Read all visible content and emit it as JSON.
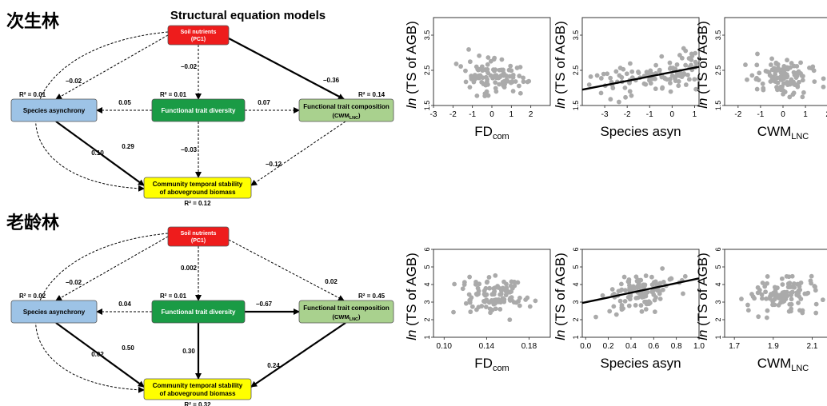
{
  "sem_title": "Structural equation models",
  "panels": [
    {
      "section_label": "次生林",
      "nodes": {
        "soil": {
          "line1": "Soil nutrients",
          "line2": "(PC1)",
          "fill": "#ee1c1c"
        },
        "asyn": {
          "line1": "Species asynchrony",
          "fill": "#9dc3e6"
        },
        "fd": {
          "line1": "Functional trait diversity",
          "fill": "#1a9b45"
        },
        "cwm": {
          "line1": "Functional trait composition",
          "line2_main": "(CWM",
          "line2_sub": "LNC",
          "line2_end": ")",
          "fill": "#a9d18e"
        },
        "stab": {
          "line1": "Community temporal stability",
          "line2": "of aboveground biomass",
          "fill": "#ffff00"
        }
      },
      "r2": {
        "asyn": "R² = 0.01",
        "fd": "R² = 0.01",
        "cwm": "R² = 0.14",
        "stab": "R² = 0.12"
      },
      "paths": {
        "soil_asyn": "−0.02",
        "soil_fd": "−0.02",
        "soil_cwm": "−0.36",
        "soil_stab": "0.10",
        "fd_asyn": "0.05",
        "fd_cwm": "0.07",
        "asyn_stab": "0.29",
        "fd_stab": "−0.03",
        "cwm_stab": "−0.12"
      },
      "plots": [
        {
          "xlabel_main": "FD",
          "xlabel_sub": "com",
          "yticks": [
            "1.5",
            "2.5",
            "3.5"
          ],
          "ylim": [
            1.5,
            4.0
          ],
          "xticks": [
            "-3",
            "-2",
            "-1",
            "0",
            "1",
            "2"
          ],
          "xlim": [
            -3,
            3
          ],
          "trend": null,
          "seed": 11
        },
        {
          "xlabel_main": "Species asyn",
          "xlabel_sub": "",
          "yticks": [
            "1.5",
            "2.5",
            "3.5"
          ],
          "ylim": [
            1.5,
            4.0
          ],
          "xticks": [
            "-3",
            "-2",
            "-1",
            "0",
            "1"
          ],
          "xlim": [
            -4,
            1.2
          ],
          "trend": [
            1.95,
            2.6
          ],
          "seed": 23
        },
        {
          "xlabel_main": "CWM",
          "xlabel_sub": "LNC",
          "yticks": [
            "1.5",
            "2.5",
            "3.5"
          ],
          "ylim": [
            1.5,
            4.0
          ],
          "xticks": [
            "-2",
            "-1",
            "0",
            "1",
            "2"
          ],
          "xlim": [
            -2.6,
            2.6
          ],
          "trend": null,
          "seed": 37
        }
      ]
    },
    {
      "section_label": "老龄林",
      "nodes": {
        "soil": {
          "line1": "Soil nutrients",
          "line2": "(PC1)",
          "fill": "#ee1c1c"
        },
        "asyn": {
          "line1": "Species asynchrony",
          "fill": "#9dc3e6"
        },
        "fd": {
          "line1": "Functional trait diversity",
          "fill": "#1a9b45"
        },
        "cwm": {
          "line1": "Functional trait composition",
          "line2_main": "(CWM",
          "line2_sub": "LNC",
          "line2_end": ")",
          "fill": "#a9d18e"
        },
        "stab": {
          "line1": "Community temporal stability",
          "line2": "of aboveground biomass",
          "fill": "#ffff00"
        }
      },
      "r2": {
        "asyn": "R² = 0.02",
        "fd": "R² = 0.01",
        "cwm": "R² = 0.45",
        "stab": "R² = 0.32"
      },
      "paths": {
        "soil_asyn": "−0.02",
        "soil_fd": "0.002",
        "soil_cwm": "0.02",
        "soil_stab": "0.02",
        "fd_asyn": "0.04",
        "fd_cwm": "−0.67",
        "asyn_stab": "0.50",
        "fd_stab": "0.30",
        "cwm_stab": "0.24"
      },
      "plots": [
        {
          "xlabel_main": "FD",
          "xlabel_sub": "com",
          "yticks": [
            "1",
            "2",
            "3",
            "4",
            "5",
            "6"
          ],
          "ylim": [
            1,
            6
          ],
          "xticks": [
            "0.10",
            "0.14",
            "0.18"
          ],
          "xlim": [
            0.09,
            0.2
          ],
          "trend": null,
          "seed": 53
        },
        {
          "xlabel_main": "Species asyn",
          "xlabel_sub": "",
          "yticks": [
            "1",
            "2",
            "3",
            "4",
            "5",
            "6"
          ],
          "ylim": [
            1,
            6
          ],
          "xticks": [
            "0.0",
            "0.2",
            "0.4",
            "0.6",
            "0.8",
            "1.0"
          ],
          "xlim": [
            -0.03,
            1.0
          ],
          "trend": [
            2.95,
            4.35
          ],
          "seed": 71
        },
        {
          "xlabel_main": "CWM",
          "xlabel_sub": "LNC",
          "yticks": [
            "1",
            "2",
            "3",
            "4",
            "5",
            "6"
          ],
          "ylim": [
            1,
            6
          ],
          "xticks": [
            "1.7",
            "1.9",
            "2.1"
          ],
          "xlim": [
            1.65,
            2.25
          ],
          "trend": null,
          "seed": 89
        }
      ]
    }
  ],
  "ylabel": {
    "italic": "ln",
    "rest": " (TS of AGB)"
  },
  "colors": {
    "points": "#aaaaaa",
    "trend": "#000000",
    "axis": "#222222"
  }
}
